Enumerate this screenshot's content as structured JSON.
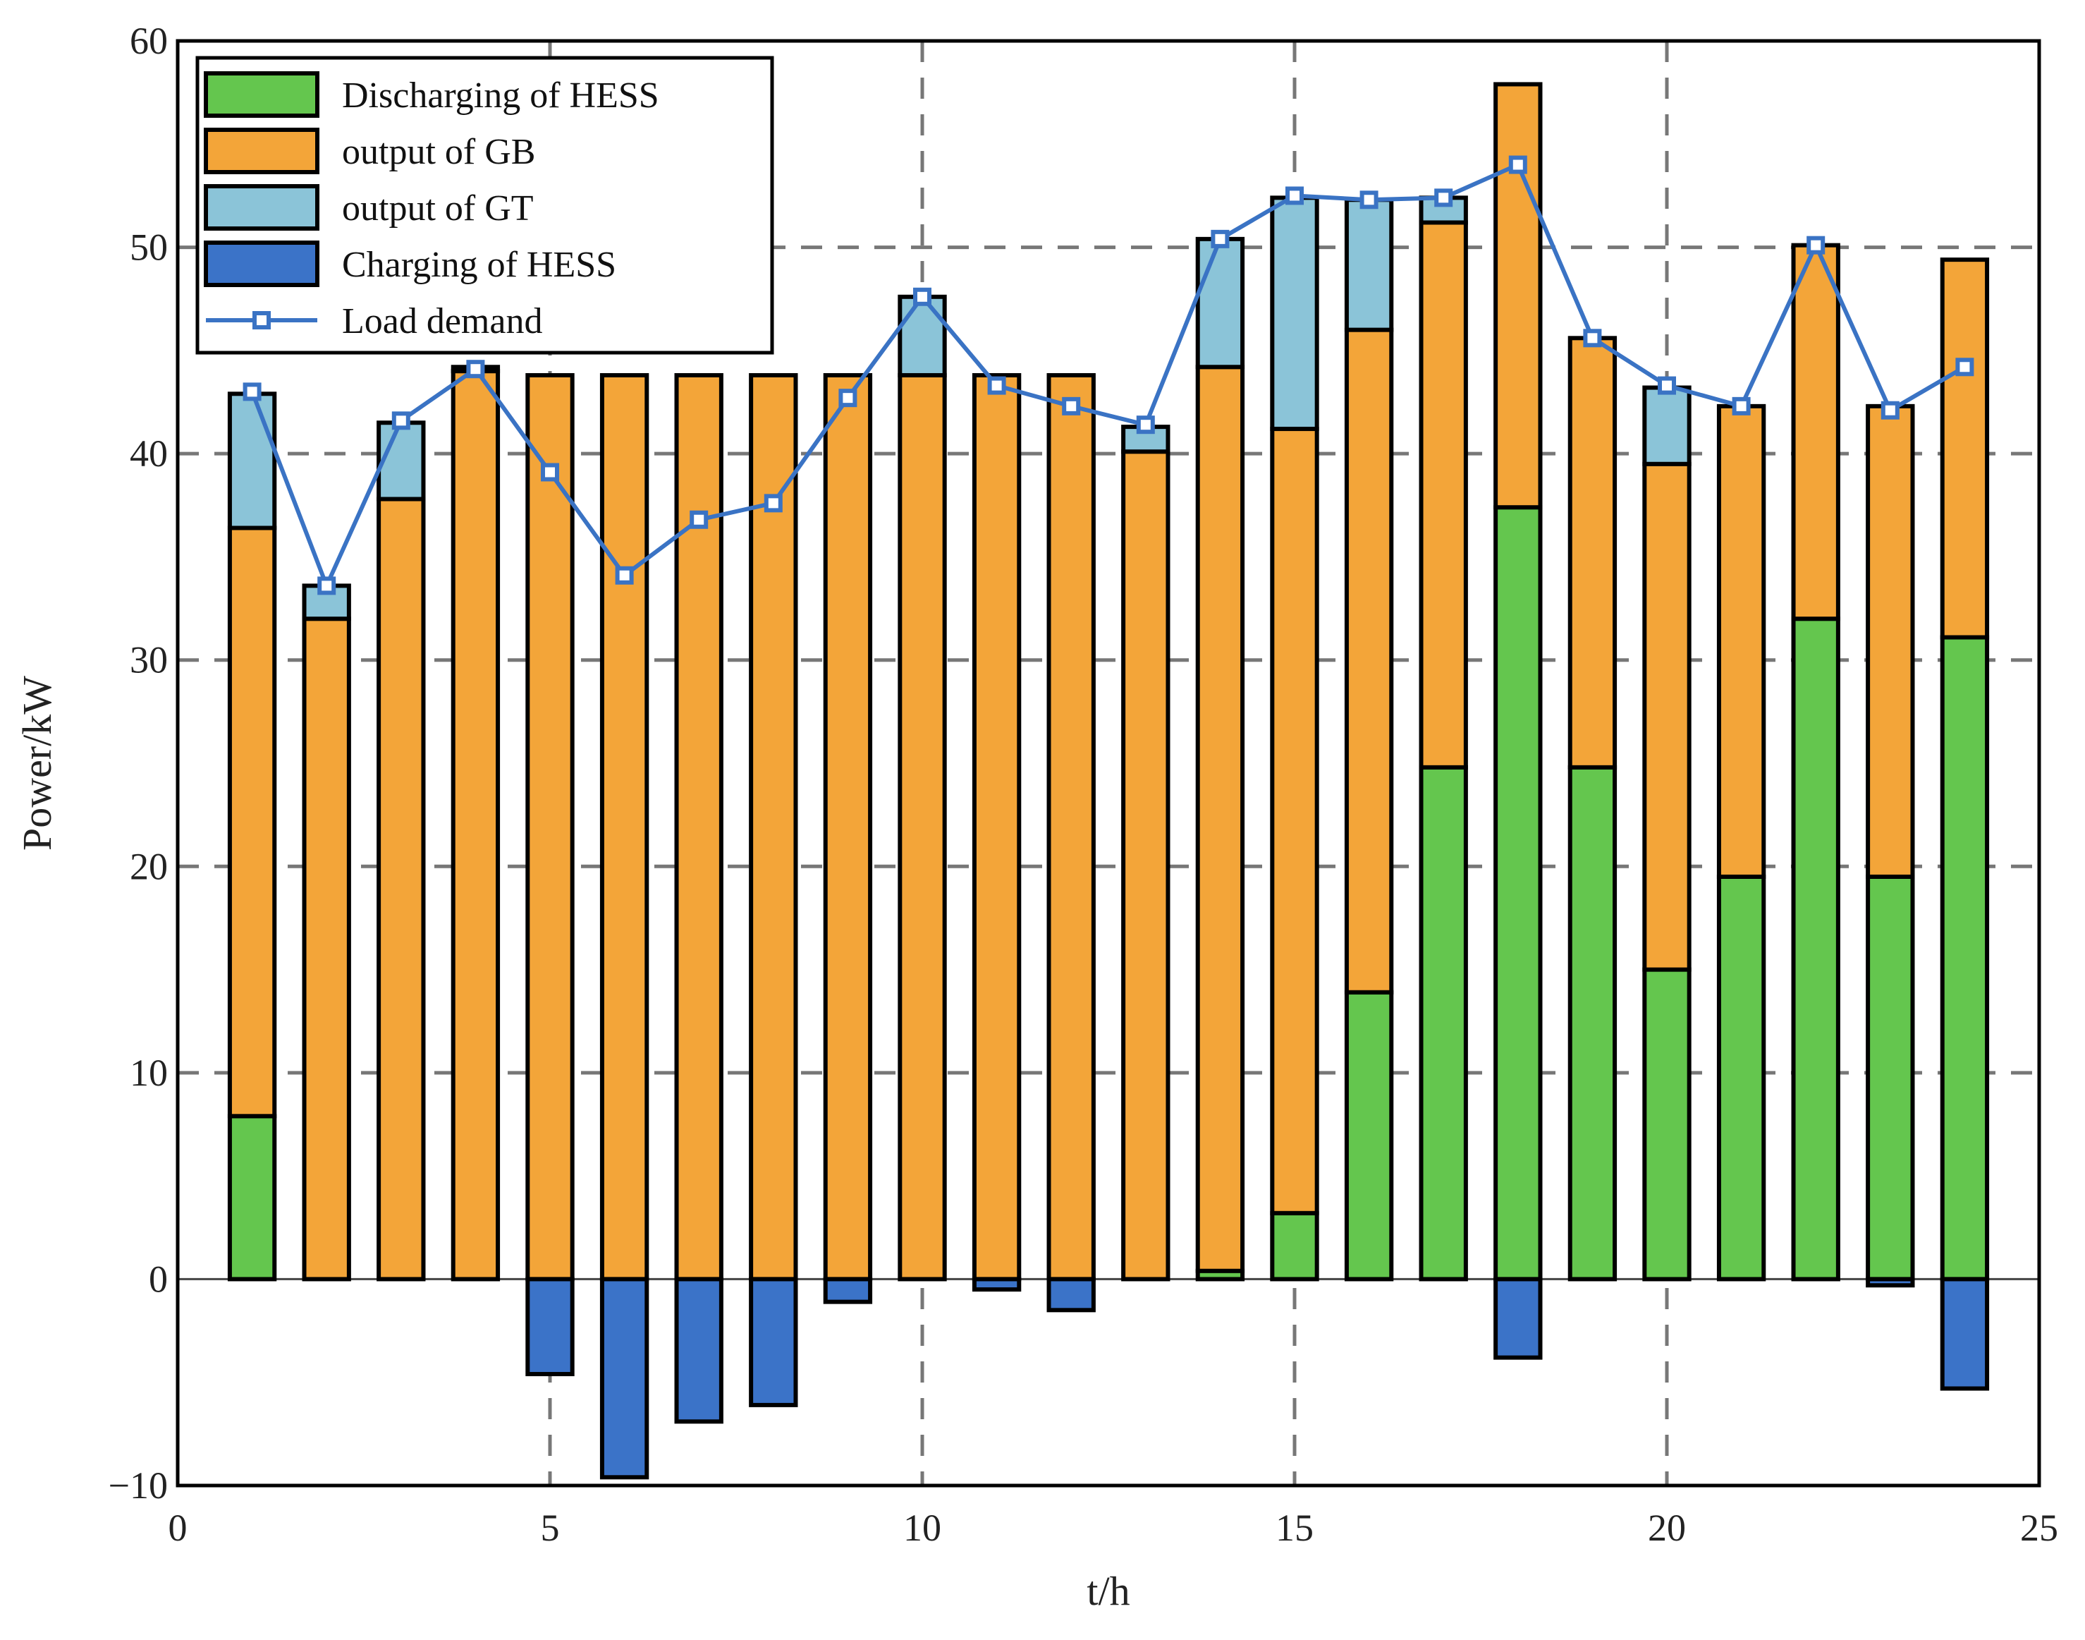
{
  "chart_data": {
    "type": "bar",
    "stacked": true,
    "title": "",
    "xlabel": "t/h",
    "ylabel": "Power/kW",
    "xlim": [
      0,
      25
    ],
    "ylim": [
      -10,
      60
    ],
    "xticks": [
      0,
      5,
      10,
      15,
      20,
      25
    ],
    "yticks": [
      -10,
      0,
      10,
      20,
      30,
      40,
      50,
      60
    ],
    "grid": true,
    "legend_position": "top-left",
    "x": [
      1,
      2,
      3,
      4,
      5,
      6,
      7,
      8,
      9,
      10,
      11,
      12,
      13,
      14,
      15,
      16,
      17,
      18,
      19,
      20,
      21,
      22,
      23,
      24
    ],
    "series": [
      {
        "name": "Discharging of HESS",
        "kind": "bar",
        "color": "#64c64e",
        "values": [
          7.9,
          0,
          0,
          0,
          0,
          0,
          0,
          0,
          0,
          0,
          0,
          0,
          0,
          0.4,
          3.2,
          13.9,
          24.8,
          37.4,
          24.8,
          15.0,
          19.5,
          32.0,
          19.5,
          31.1
        ]
      },
      {
        "name": "output of GB",
        "kind": "bar",
        "color": "#f3a539",
        "values": [
          28.5,
          32.0,
          37.8,
          44.0,
          43.8,
          43.8,
          43.8,
          43.8,
          43.8,
          43.8,
          43.8,
          43.8,
          40.1,
          43.8,
          38.0,
          32.1,
          26.4,
          20.5,
          20.8,
          24.5,
          22.8,
          18.1,
          22.8,
          18.3
        ]
      },
      {
        "name": "output of GT",
        "kind": "bar",
        "color": "#8bc4d8",
        "values": [
          6.5,
          1.6,
          3.7,
          0.2,
          0,
          0,
          0,
          0,
          0,
          3.8,
          0,
          0,
          1.2,
          6.2,
          11.2,
          6.3,
          1.2,
          0,
          0,
          3.7,
          0,
          0,
          0,
          0
        ]
      },
      {
        "name": "Charging of HESS",
        "kind": "bar",
        "color": "#3b73c8",
        "values": [
          0,
          0,
          0,
          0,
          -4.6,
          -9.6,
          -6.9,
          -6.1,
          -1.1,
          0,
          -0.5,
          -1.5,
          0,
          0,
          0,
          0,
          0,
          -3.8,
          0,
          0,
          0,
          0,
          -0.3,
          -5.3
        ]
      },
      {
        "name": "Load demand",
        "kind": "line",
        "color": "#3a73c4",
        "values": [
          43.0,
          33.6,
          41.6,
          44.1,
          39.1,
          34.1,
          36.8,
          37.6,
          42.7,
          47.6,
          43.3,
          42.3,
          41.4,
          50.4,
          52.5,
          52.3,
          52.4,
          54.0,
          45.6,
          43.3,
          42.3,
          50.1,
          42.1,
          44.2
        ]
      }
    ]
  }
}
